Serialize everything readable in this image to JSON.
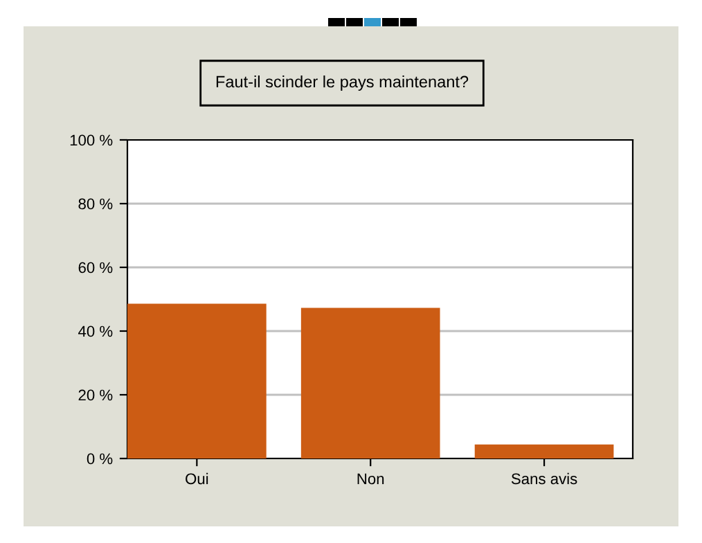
{
  "chart_data": {
    "type": "bar",
    "title": "Faut-il scinder le pays maintenant?",
    "categories": [
      "Oui",
      "Non",
      "Sans avis"
    ],
    "values": [
      48.6,
      47.3,
      4.4
    ],
    "color": "#cc5c14",
    "ylim": [
      0,
      100
    ],
    "yticks": [
      {
        "value": 0,
        "label": "0 %"
      },
      {
        "value": 20,
        "label": "20 %"
      },
      {
        "value": 40,
        "label": "40 %"
      },
      {
        "value": 60,
        "label": "60 %"
      },
      {
        "value": 80,
        "label": "80 %"
      },
      {
        "value": 100,
        "label": "100 %"
      }
    ],
    "grid": "y"
  }
}
